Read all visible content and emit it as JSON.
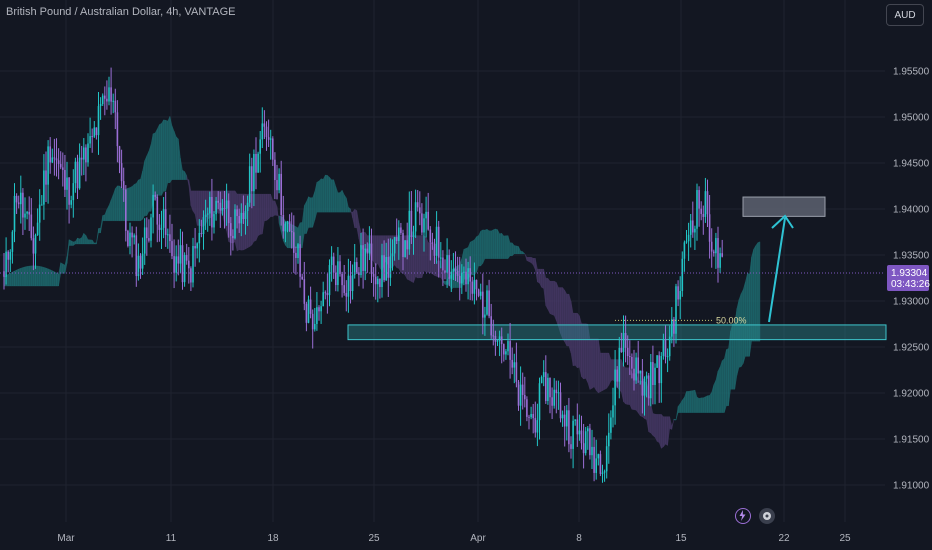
{
  "header": {
    "title": "British Pound / Australian Dollar, 4h, VANTAGE",
    "currency_label": "AUD"
  },
  "price_tag": {
    "price": "1.93304",
    "countdown": "03:43:26"
  },
  "colors": {
    "background": "#131722",
    "bull_candle": "#22c5c7",
    "bear_candle": "#9b6fd6",
    "cloud_bull": "#1f6f73",
    "cloud_bear": "#4a3b6a",
    "zone": "#2a8a90",
    "target_box": "#5d6270",
    "arrow": "#2ec3d3",
    "price_tag": "#7e57c2"
  },
  "icons": [
    "lightning-icon",
    "event-icon"
  ],
  "chart_data": {
    "type": "candlestick",
    "title": "British Pound / Australian Dollar, 4h, VANTAGE",
    "xlabel": "",
    "ylabel": "",
    "y_ticks": [
      "1.95500",
      "1.95000",
      "1.94500",
      "1.94000",
      "1.93500",
      "1.93000",
      "1.92500",
      "1.92000",
      "1.91500",
      "1.91000"
    ],
    "x_ticks": [
      "Mar",
      "11",
      "18",
      "25",
      "Apr",
      "8",
      "15",
      "22",
      "25"
    ],
    "ylim": [
      1.907,
      1.9595
    ],
    "current_price": 1.93304,
    "fib_label": "50.00%",
    "fib_level": 1.9279,
    "support_zone": [
      1.9258,
      1.9274
    ],
    "target_zone": [
      1.9392,
      1.9413
    ],
    "key_path": [
      [
        0,
        1.932
      ],
      [
        6,
        1.942
      ],
      [
        14,
        1.936
      ],
      [
        22,
        1.947
      ],
      [
        30,
        1.942
      ],
      [
        40,
        1.946
      ],
      [
        47,
        1.951
      ],
      [
        52,
        1.953
      ],
      [
        58,
        1.938
      ],
      [
        64,
        1.934
      ],
      [
        72,
        1.941
      ],
      [
        80,
        1.935
      ],
      [
        88,
        1.933
      ],
      [
        96,
        1.939
      ],
      [
        104,
        1.941
      ],
      [
        112,
        1.937
      ],
      [
        120,
        1.946
      ],
      [
        126,
        1.949
      ],
      [
        134,
        1.938
      ],
      [
        140,
        1.9345
      ],
      [
        144,
        1.929
      ],
      [
        150,
        1.9275
      ],
      [
        156,
        1.934
      ],
      [
        164,
        1.932
      ],
      [
        172,
        1.935
      ],
      [
        180,
        1.933
      ],
      [
        188,
        1.936
      ],
      [
        196,
        1.939
      ],
      [
        204,
        1.937
      ],
      [
        212,
        1.934
      ],
      [
        220,
        1.932
      ],
      [
        228,
        1.93
      ],
      [
        234,
        1.9275
      ],
      [
        240,
        1.924
      ],
      [
        246,
        1.919
      ],
      [
        252,
        1.917
      ],
      [
        258,
        1.921
      ],
      [
        264,
        1.919
      ],
      [
        270,
        1.916
      ],
      [
        276,
        1.915
      ],
      [
        282,
        1.913
      ],
      [
        286,
        1.9135
      ],
      [
        290,
        1.919
      ],
      [
        294,
        1.926
      ],
      [
        298,
        1.924
      ],
      [
        304,
        1.921
      ],
      [
        310,
        1.922
      ],
      [
        316,
        1.925
      ],
      [
        322,
        1.932
      ],
      [
        326,
        1.938
      ],
      [
        330,
        1.9405
      ],
      [
        334,
        1.94
      ],
      [
        338,
        1.936
      ],
      [
        342,
        1.933
      ]
    ]
  }
}
